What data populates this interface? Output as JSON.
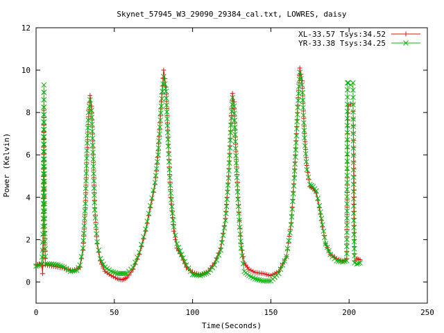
{
  "colors": {
    "background": "#ffffff",
    "axis": "#000000",
    "series_xl": "#e01010",
    "series_yr": "#10b010"
  },
  "chart_data": {
    "type": "line",
    "title": "Skynet_57945_W3_29090_29384_cal.txt, LOWRES, daisy",
    "xlabel": "Time(Seconds)",
    "ylabel": "Power (Kelvin)",
    "xlim": [
      0,
      250
    ],
    "ylim": [
      -1,
      12
    ],
    "x_ticks": [
      0,
      50,
      100,
      150,
      200,
      250
    ],
    "y_ticks": [
      0,
      2,
      4,
      6,
      8,
      10,
      12
    ],
    "grid": false,
    "legend_position": "top-right",
    "series": [
      {
        "name": "XL-33.57 Tsys:34.52",
        "marker": "plus",
        "color": "#e01010",
        "points": [
          [
            0,
            0.8
          ],
          [
            2,
            0.85
          ],
          [
            3.5,
            0.9
          ],
          [
            4.2,
            0.4
          ],
          [
            4.6,
            1.5
          ],
          [
            5,
            8.1
          ],
          [
            5.4,
            2.7
          ],
          [
            6,
            0.8
          ],
          [
            10,
            0.75
          ],
          [
            14,
            0.7
          ],
          [
            18,
            0.65
          ],
          [
            22,
            0.55
          ],
          [
            26,
            0.6
          ],
          [
            28,
            0.7
          ],
          [
            30,
            1.5
          ],
          [
            31.5,
            3.5
          ],
          [
            32.5,
            6.0
          ],
          [
            33.5,
            7.8
          ],
          [
            34.5,
            8.8
          ],
          [
            35.5,
            8.3
          ],
          [
            36.5,
            6.0
          ],
          [
            37.5,
            3.5
          ],
          [
            39,
            1.8
          ],
          [
            41,
            1.0
          ],
          [
            44,
            0.5
          ],
          [
            48,
            0.3
          ],
          [
            52,
            0.15
          ],
          [
            55,
            0.1
          ],
          [
            58,
            0.2
          ],
          [
            62,
            0.6
          ],
          [
            66,
            1.3
          ],
          [
            70,
            2.4
          ],
          [
            73,
            3.5
          ],
          [
            76,
            4.6
          ],
          [
            78,
            6.2
          ],
          [
            80,
            8.5
          ],
          [
            81.5,
            10.0
          ],
          [
            83,
            9.2
          ],
          [
            84.5,
            6.5
          ],
          [
            86,
            4.0
          ],
          [
            88,
            2.4
          ],
          [
            90,
            1.6
          ],
          [
            93,
            1.2
          ],
          [
            96,
            0.7
          ],
          [
            100,
            0.45
          ],
          [
            105,
            0.35
          ],
          [
            110,
            0.5
          ],
          [
            114,
            0.9
          ],
          [
            118,
            1.6
          ],
          [
            121,
            3.0
          ],
          [
            123,
            5.0
          ],
          [
            124.5,
            7.5
          ],
          [
            125.5,
            8.9
          ],
          [
            126.5,
            8.5
          ],
          [
            127.5,
            6.5
          ],
          [
            129,
            4.0
          ],
          [
            131,
            1.8
          ],
          [
            133,
            0.9
          ],
          [
            136,
            0.6
          ],
          [
            140,
            0.45
          ],
          [
            145,
            0.4
          ],
          [
            150,
            0.3
          ],
          [
            155,
            0.5
          ],
          [
            160,
            1.2
          ],
          [
            163,
            2.8
          ],
          [
            165,
            5.0
          ],
          [
            167,
            8.0
          ],
          [
            168.5,
            10.1
          ],
          [
            170,
            9.5
          ],
          [
            171.5,
            7.0
          ],
          [
            173,
            5.5
          ],
          [
            175,
            4.5
          ],
          [
            177,
            4.4
          ],
          [
            179,
            4.2
          ],
          [
            181,
            3.5
          ],
          [
            183,
            2.6
          ],
          [
            185,
            1.8
          ],
          [
            188,
            1.3
          ],
          [
            192,
            1.1
          ],
          [
            196,
            1.0
          ],
          [
            198.5,
            1.1
          ],
          [
            199,
            7.0
          ],
          [
            199.5,
            8.3
          ],
          [
            201,
            8.4
          ],
          [
            202.5,
            8.4
          ],
          [
            203,
            6.0
          ],
          [
            203.5,
            1.0
          ],
          [
            205,
            1.1
          ],
          [
            207,
            1.05
          ]
        ]
      },
      {
        "name": "YR-33.38 Tsys:34.25",
        "marker": "cross",
        "color": "#10b010",
        "points": [
          [
            0,
            0.75
          ],
          [
            2,
            0.8
          ],
          [
            3.5,
            0.85
          ],
          [
            4.2,
            1.5
          ],
          [
            4.6,
            3.0
          ],
          [
            5,
            9.3
          ],
          [
            5.4,
            3.0
          ],
          [
            6,
            0.85
          ],
          [
            10,
            0.85
          ],
          [
            14,
            0.8
          ],
          [
            18,
            0.7
          ],
          [
            22,
            0.5
          ],
          [
            26,
            0.55
          ],
          [
            28,
            0.8
          ],
          [
            30,
            1.6
          ],
          [
            31.5,
            3.7
          ],
          [
            32.5,
            6.2
          ],
          [
            33.5,
            8.0
          ],
          [
            34.5,
            8.6
          ],
          [
            35.5,
            8.1
          ],
          [
            36.5,
            5.8
          ],
          [
            37.5,
            3.4
          ],
          [
            39,
            1.9
          ],
          [
            41,
            1.1
          ],
          [
            44,
            0.7
          ],
          [
            48,
            0.5
          ],
          [
            52,
            0.4
          ],
          [
            55,
            0.4
          ],
          [
            58,
            0.4
          ],
          [
            62,
            0.7
          ],
          [
            66,
            1.4
          ],
          [
            70,
            2.5
          ],
          [
            73,
            3.6
          ],
          [
            76,
            4.7
          ],
          [
            78,
            6.0
          ],
          [
            80,
            8.3
          ],
          [
            81.5,
            9.7
          ],
          [
            83,
            9.0
          ],
          [
            84.5,
            6.4
          ],
          [
            86,
            4.2
          ],
          [
            88,
            2.6
          ],
          [
            90,
            1.8
          ],
          [
            93,
            1.3
          ],
          [
            96,
            0.8
          ],
          [
            100,
            0.35
          ],
          [
            105,
            0.3
          ],
          [
            110,
            0.45
          ],
          [
            114,
            0.8
          ],
          [
            118,
            1.5
          ],
          [
            121,
            2.9
          ],
          [
            123,
            4.9
          ],
          [
            124.5,
            7.4
          ],
          [
            125.5,
            8.7
          ],
          [
            126.5,
            8.3
          ],
          [
            127.5,
            6.3
          ],
          [
            129,
            3.9
          ],
          [
            131,
            1.6
          ],
          [
            133,
            0.5
          ],
          [
            136,
            0.3
          ],
          [
            140,
            0.15
          ],
          [
            145,
            0.05
          ],
          [
            150,
            0.05
          ],
          [
            155,
            0.4
          ],
          [
            160,
            1.2
          ],
          [
            163,
            2.7
          ],
          [
            165,
            4.9
          ],
          [
            167,
            7.9
          ],
          [
            168.5,
            9.9
          ],
          [
            170,
            9.3
          ],
          [
            171.5,
            6.8
          ],
          [
            173,
            5.3
          ],
          [
            175,
            4.6
          ],
          [
            177,
            4.5
          ],
          [
            179,
            4.3
          ],
          [
            181,
            3.6
          ],
          [
            183,
            2.7
          ],
          [
            185,
            1.8
          ],
          [
            188,
            1.3
          ],
          [
            192,
            1.0
          ],
          [
            196,
            0.95
          ],
          [
            198.5,
            1.0
          ],
          [
            199,
            9.4
          ],
          [
            199.5,
            9.4
          ],
          [
            201,
            9.3
          ],
          [
            202.5,
            9.4
          ],
          [
            203,
            2.9
          ],
          [
            203.5,
            0.9
          ],
          [
            205,
            0.85
          ],
          [
            207,
            0.9
          ]
        ]
      }
    ]
  }
}
